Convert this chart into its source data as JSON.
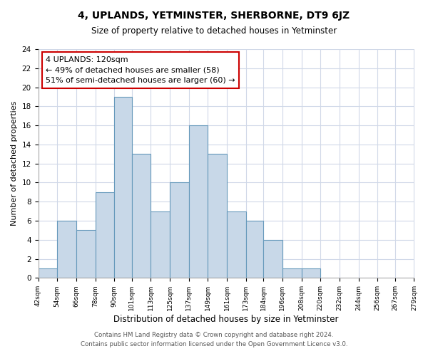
{
  "title": "4, UPLANDS, YETMINSTER, SHERBORNE, DT9 6JZ",
  "subtitle": "Size of property relative to detached houses in Yetminster",
  "xlabel": "Distribution of detached houses by size in Yetminster",
  "ylabel": "Number of detached properties",
  "bin_edges": [
    42,
    54,
    66,
    78,
    90,
    101,
    113,
    125,
    137,
    149,
    161,
    173,
    184,
    196,
    208,
    220,
    232,
    244,
    256,
    267,
    279
  ],
  "bin_labels": [
    "42sqm",
    "54sqm",
    "66sqm",
    "78sqm",
    "90sqm",
    "101sqm",
    "113sqm",
    "125sqm",
    "137sqm",
    "149sqm",
    "161sqm",
    "173sqm",
    "184sqm",
    "196sqm",
    "208sqm",
    "220sqm",
    "232sqm",
    "244sqm",
    "256sqm",
    "267sqm",
    "279sqm"
  ],
  "counts": [
    1,
    6,
    5,
    9,
    19,
    13,
    7,
    10,
    16,
    13,
    7,
    6,
    4,
    1,
    1,
    0,
    0,
    0,
    0,
    0
  ],
  "bar_color": "#c8d8e8",
  "bar_edge_color": "#6699bb",
  "annotation_title": "4 UPLANDS: 120sqm",
  "annotation_line1": "← 49% of detached houses are smaller (58)",
  "annotation_line2": "51% of semi-detached houses are larger (60) →",
  "annotation_box_color": "#ffffff",
  "annotation_box_edge": "#cc0000",
  "ylim": [
    0,
    24
  ],
  "yticks": [
    0,
    2,
    4,
    6,
    8,
    10,
    12,
    14,
    16,
    18,
    20,
    22,
    24
  ],
  "footer_line1": "Contains HM Land Registry data © Crown copyright and database right 2024.",
  "footer_line2": "Contains public sector information licensed under the Open Government Licence v3.0.",
  "background_color": "#ffffff",
  "grid_color": "#d0d8e8"
}
